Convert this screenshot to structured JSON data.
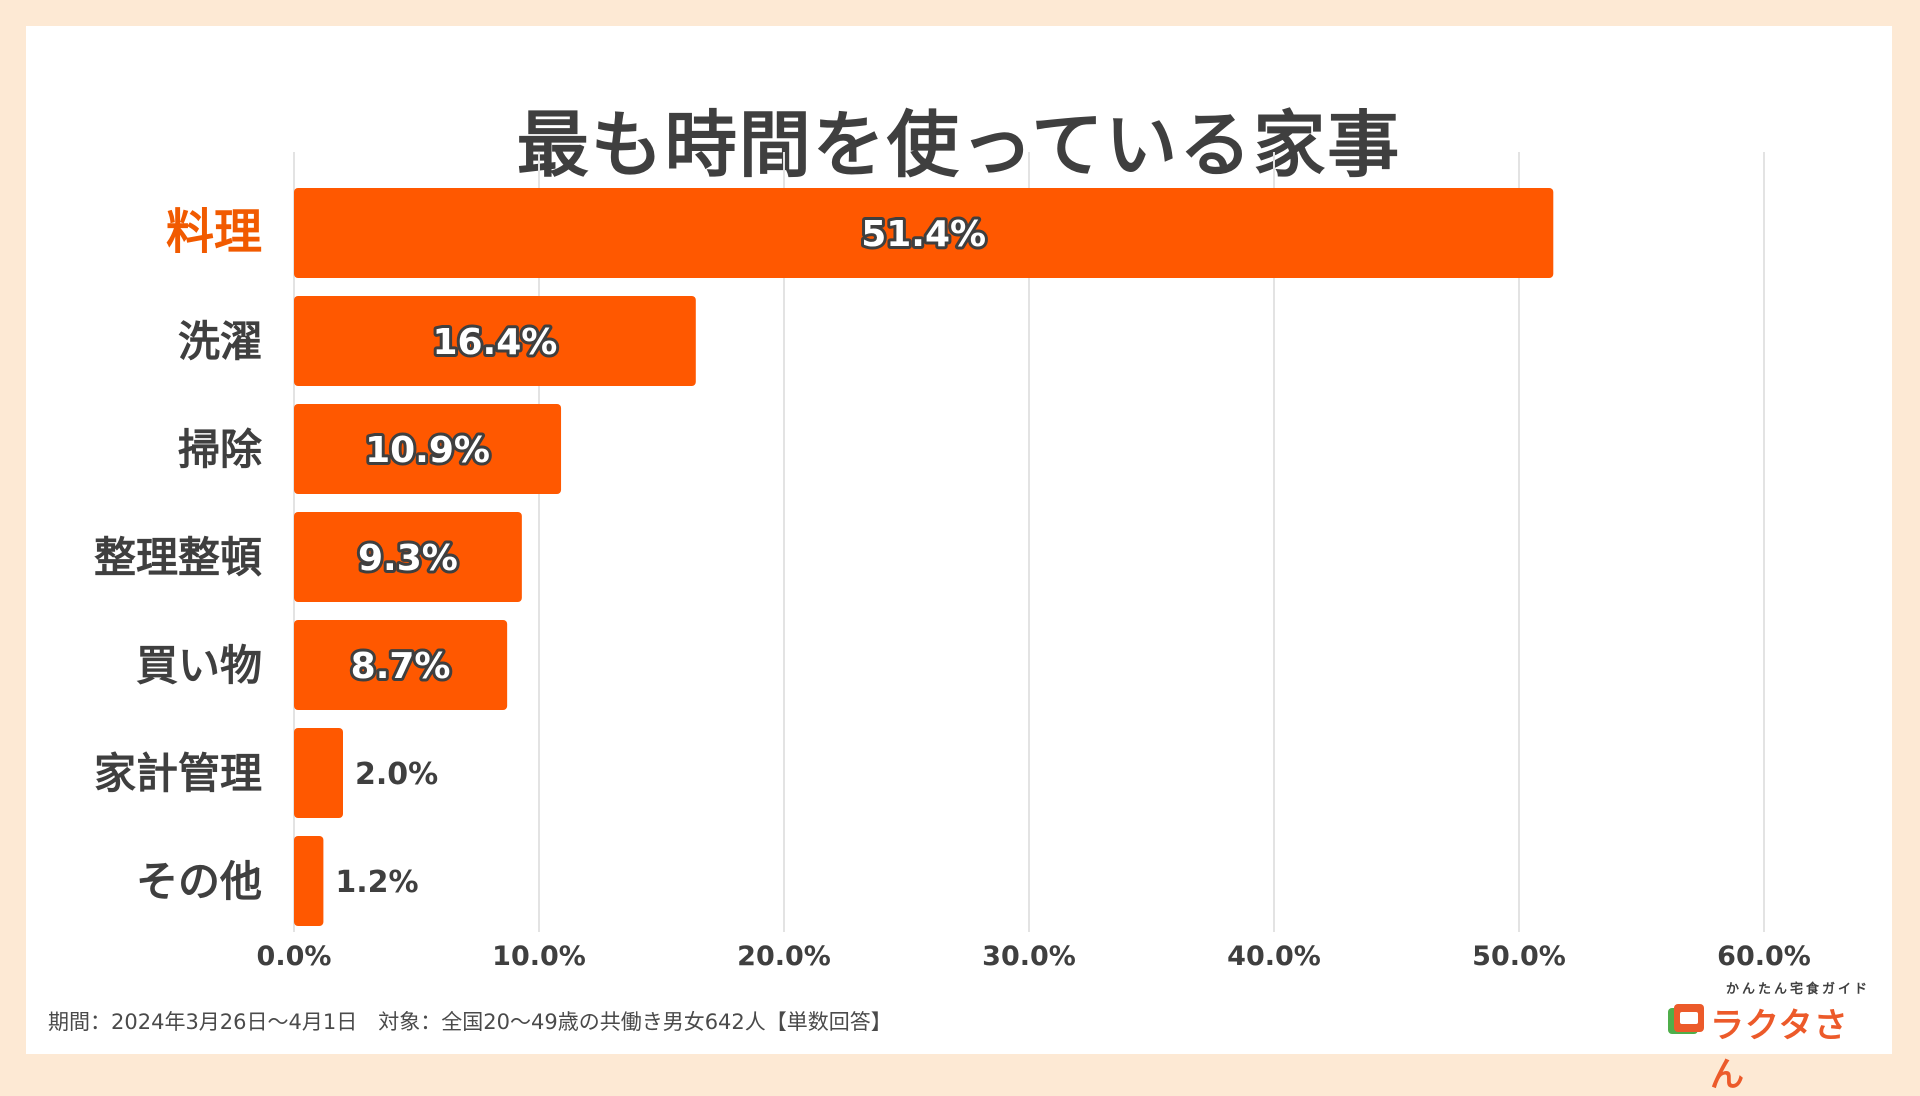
{
  "title": "最も時間を使っている家事",
  "footnote": "期間：2024年3月26日〜4月1日　対象：全国20〜49歳の共働き男女642人【単数回答】",
  "logo": {
    "sub": "かんたん宅食ガイド",
    "main": "ラクタさん"
  },
  "colors": {
    "bar": "#ff5800",
    "highlight_label": "#f15a00",
    "label": "#3f3f3f",
    "grid": "#e3e3e3"
  },
  "chart_data": {
    "type": "bar",
    "orientation": "horizontal",
    "title": "最も時間を使っている家事",
    "categories": [
      "料理",
      "洗濯",
      "掃除",
      "整理整頓",
      "買い物",
      "家計管理",
      "その他"
    ],
    "values": [
      51.4,
      16.4,
      10.9,
      9.3,
      8.7,
      2.0,
      1.2
    ],
    "value_labels": [
      "51.4%",
      "16.4%",
      "10.9%",
      "9.3%",
      "8.7%",
      "2.0%",
      "1.2%"
    ],
    "highlight_category": "料理",
    "xlim": [
      0,
      60
    ],
    "xticks": [
      0,
      10,
      20,
      30,
      40,
      50,
      60
    ],
    "xtick_labels": [
      "0.0%",
      "10.0%",
      "20.0%",
      "30.0%",
      "40.0%",
      "50.0%",
      "60.0%"
    ],
    "grid": true,
    "unit": "%"
  }
}
